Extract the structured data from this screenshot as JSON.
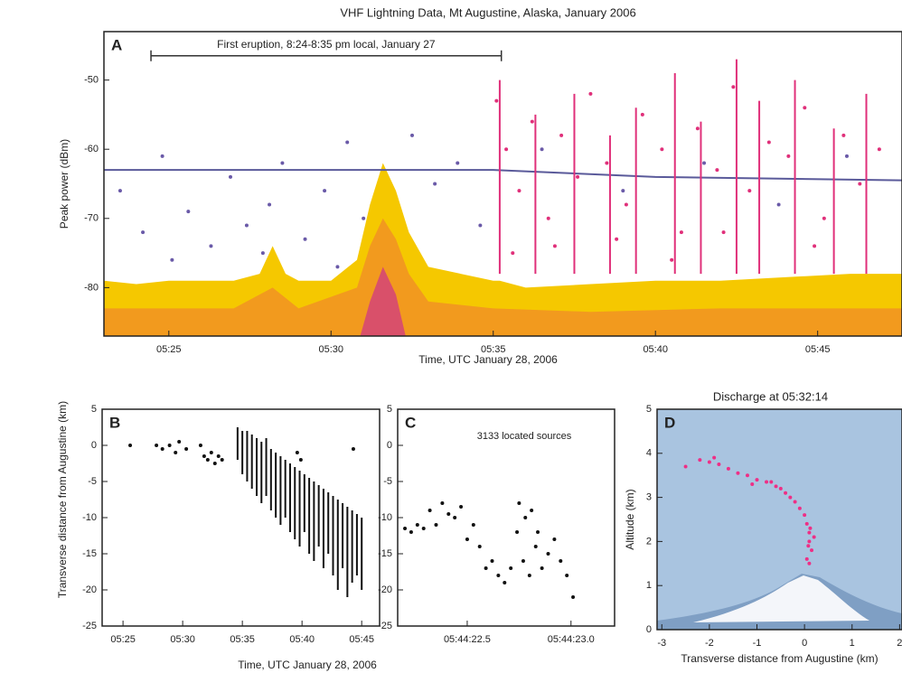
{
  "chart_data": [
    {
      "type": "scatter",
      "panel_label": "A",
      "title": "VHF Lightning Data, Mt Augustine, Alaska, January 2006",
      "xlabel": "Time, UTC January 28, 2006",
      "ylabel": "Peak power (dBm)",
      "annotation": "First eruption, 8:24-8:35 pm local, January 27",
      "annotation_x": [
        24.45,
        35.25
      ],
      "annotation_y": -46.5,
      "xlim": [
        23,
        47.6
      ],
      "ylim": [
        -87,
        -43
      ],
      "xticks": [
        {
          "value": 25,
          "label": "05:25"
        },
        {
          "value": 30,
          "label": "05:30"
        },
        {
          "value": 35,
          "label": "05:35"
        },
        {
          "value": 40,
          "label": "05:40"
        },
        {
          "value": 45,
          "label": "05:45"
        }
      ],
      "yticks": [
        -80,
        -70,
        -60,
        -50
      ],
      "series": [
        {
          "type": "area",
          "color": "#f5c800",
          "x": [
            23,
            24,
            25,
            26,
            27,
            27.8,
            28.2,
            28.6,
            29,
            30,
            30.8,
            31.2,
            31.6,
            32,
            32.4,
            33,
            34,
            35,
            35.2,
            36,
            38,
            40,
            42,
            44,
            46,
            47.6
          ],
          "values": [
            -79,
            -79.5,
            -79,
            -79,
            -79,
            -78,
            -74,
            -78,
            -79,
            -79,
            -76,
            -68,
            -62,
            -66,
            -72,
            -77,
            -78,
            -79,
            -79,
            -80,
            -79.5,
            -79,
            -79,
            -78.5,
            -78,
            -78
          ]
        },
        {
          "type": "area",
          "color": "#f29a1e",
          "x": [
            23,
            25,
            27,
            28.2,
            29,
            30.8,
            31.2,
            31.6,
            32,
            32.4,
            33,
            35,
            38,
            42,
            47.6
          ],
          "values": [
            -83,
            -83,
            -83,
            -80,
            -83,
            -80,
            -74,
            -70,
            -73,
            -78,
            -82,
            -83,
            -83.5,
            -83,
            -83
          ]
        },
        {
          "type": "area",
          "color": "#d9506a",
          "x": [
            23,
            30.9,
            31.2,
            31.6,
            32,
            32.3,
            47.6
          ],
          "values": [
            -87,
            -87,
            -82,
            -77,
            -81,
            -87,
            -87
          ]
        },
        {
          "type": "line",
          "color": "#5a5a9a",
          "x": [
            23,
            35,
            40,
            47.6
          ],
          "values": [
            -63,
            -63,
            -64,
            -64.5
          ]
        },
        {
          "type": "scatter",
          "color": "#6a5aa8",
          "x": [
            23.5,
            24.2,
            24.8,
            25.6,
            26.3,
            26.9,
            27.4,
            28.1,
            28.5,
            29.2,
            29.8,
            30.5,
            31.0,
            32.5,
            33.2,
            33.9,
            34.6,
            36.5,
            39.0,
            41.5,
            43.8,
            45.9,
            25.1,
            27.9,
            30.2
          ],
          "values": [
            -66,
            -72,
            -61,
            -69,
            -74,
            -64,
            -71,
            -68,
            -62,
            -73,
            -66,
            -59,
            -70,
            -58,
            -65,
            -62,
            -71,
            -60,
            -66,
            -62,
            -68,
            -61,
            -76,
            -75,
            -77
          ]
        },
        {
          "type": "range",
          "color": "#e0307a",
          "x": [
            35.2,
            36.3,
            37.5,
            38.6,
            39.4,
            40.6,
            41.4,
            42.5,
            43.2,
            44.3,
            45.5,
            46.5
          ],
          "low": [
            -78,
            -78,
            -78,
            -78,
            -78,
            -78,
            -78,
            -78,
            -78,
            -78,
            -78,
            -78
          ],
          "high": [
            -50,
            -55,
            -52,
            -58,
            -54,
            -49,
            -56,
            -47,
            -53,
            -50,
            -57,
            -52
          ]
        },
        {
          "type": "scatter",
          "color": "#e0307a",
          "x": [
            35.1,
            35.4,
            35.8,
            36.2,
            36.7,
            37.1,
            37.6,
            38.0,
            38.5,
            39.1,
            39.6,
            40.2,
            40.8,
            41.3,
            41.9,
            42.4,
            42.9,
            43.5,
            44.1,
            44.6,
            45.2,
            45.8,
            46.3,
            46.9,
            35.6,
            36.9,
            38.8,
            40.5,
            42.1,
            44.9
          ],
          "values": [
            -53,
            -60,
            -66,
            -56,
            -70,
            -58,
            -64,
            -52,
            -62,
            -68,
            -55,
            -60,
            -72,
            -57,
            -63,
            -51,
            -66,
            -59,
            -61,
            -54,
            -70,
            -58,
            -65,
            -60,
            -75,
            -74,
            -73,
            -76,
            -72,
            -74
          ]
        }
      ]
    },
    {
      "type": "scatter",
      "panel_label": "B",
      "xlabel": "Time, UTC January 28, 2006",
      "ylabel": "Transverse distance from Augustine (km)",
      "xlim": [
        23.25,
        46.5
      ],
      "ylim": [
        -25,
        5
      ],
      "xticks": [
        {
          "value": 25,
          "label": "05:25"
        },
        {
          "value": 30,
          "label": "05:30"
        },
        {
          "value": 35,
          "label": "05:35"
        },
        {
          "value": 40,
          "label": "05:40"
        },
        {
          "value": 45,
          "label": "05:45"
        }
      ],
      "yticks": [
        -25,
        -20,
        -15,
        -10,
        -5,
        0,
        5
      ],
      "series": [
        {
          "type": "range",
          "color": "#111111",
          "x": [
            34.6,
            35.0,
            35.4,
            35.8,
            36.2,
            36.6,
            37.0,
            37.4,
            37.8,
            38.2,
            38.6,
            39.0,
            39.4,
            39.8,
            40.2,
            40.6,
            41.0,
            41.4,
            41.8,
            42.2,
            42.6,
            43.0,
            43.4,
            43.8,
            44.2,
            44.6,
            45.0
          ],
          "low": [
            -2,
            -4,
            -5,
            -6,
            -7,
            -8,
            -7,
            -9,
            -10,
            -11,
            -10,
            -12,
            -13,
            -14,
            -12,
            -15,
            -16,
            -14,
            -17,
            -15,
            -18,
            -20,
            -17,
            -21,
            -19,
            -18,
            -20
          ],
          "high": [
            2.5,
            2,
            2,
            1.5,
            1,
            0.5,
            1,
            -0.5,
            -1,
            -1.5,
            -2,
            -2.5,
            -3,
            -3.5,
            -4,
            -4.5,
            -5,
            -5.5,
            -6,
            -6.5,
            -7,
            -7.5,
            -8,
            -8.5,
            -9,
            -9.5,
            -10
          ]
        },
        {
          "type": "scatter",
          "color": "#111111",
          "x": [
            25.6,
            27.8,
            28.3,
            28.9,
            29.4,
            29.7,
            30.3,
            31.5,
            31.8,
            32.1,
            32.4,
            32.7,
            33.0,
            33.3,
            39.6,
            39.9,
            44.3
          ],
          "values": [
            0,
            0,
            -0.5,
            0,
            -1,
            0.5,
            -0.5,
            0,
            -1.5,
            -2,
            -1,
            -2.5,
            -1.5,
            -2,
            -1,
            -2,
            -0.5
          ]
        }
      ]
    },
    {
      "type": "scatter",
      "panel_label": "C",
      "annotation": "3133 located sources",
      "xlim": [
        22.165,
        23.21
      ],
      "ylim": [
        -25,
        5
      ],
      "xticks": [
        {
          "value": 22.5,
          "label": "05:44:22.5"
        },
        {
          "value": 23.0,
          "label": "05:44:23.0"
        }
      ],
      "yticks": [
        -25,
        -20,
        -15,
        -10,
        -5,
        0,
        5
      ],
      "series": [
        {
          "type": "scatter",
          "color": "#111111",
          "x": [
            22.2,
            22.23,
            22.26,
            22.29,
            22.32,
            22.35,
            22.38,
            22.41,
            22.44,
            22.47,
            22.5,
            22.53,
            22.56,
            22.59,
            22.62,
            22.65,
            22.68,
            22.71,
            22.74,
            22.77,
            22.8,
            22.83,
            22.86,
            22.89,
            22.92,
            22.95,
            22.98,
            23.01,
            22.75,
            22.78,
            22.81,
            22.84
          ],
          "values": [
            -11.5,
            -12,
            -11,
            -11.5,
            -9,
            -11,
            -8,
            -9.5,
            -10,
            -8.5,
            -13,
            -11,
            -14,
            -17,
            -16,
            -18,
            -19,
            -17,
            -12,
            -16,
            -18,
            -14,
            -17,
            -15,
            -13,
            -16,
            -18,
            -21,
            -8,
            -10,
            -9,
            -12
          ]
        }
      ]
    },
    {
      "type": "scatter",
      "panel_label": "D",
      "title": "Discharge at 05:32:14",
      "xlabel": "Transverse distance from Augustine (km)",
      "ylabel": "Altitude (km)",
      "background": "#a9c4e0",
      "xlim": [
        -3.1,
        2.05
      ],
      "ylim": [
        0,
        5
      ],
      "xticks": [
        -3,
        -2,
        -1,
        0,
        1,
        2
      ],
      "yticks": [
        0,
        1,
        2,
        3,
        4,
        5
      ],
      "series": [
        {
          "type": "scatter",
          "color": "#ee2f86",
          "x": [
            -2.2,
            -2.0,
            -1.8,
            -1.6,
            -1.4,
            -1.2,
            -1.0,
            -0.8,
            -0.6,
            -0.5,
            -0.4,
            -0.3,
            -0.2,
            -0.1,
            0,
            0.05,
            0.1,
            0.1,
            0.15,
            0.05,
            0.2,
            -2.5,
            -1.9,
            -1.1,
            -0.7,
            0.1,
            0.08,
            0.12
          ],
          "values": [
            3.85,
            3.8,
            3.75,
            3.65,
            3.55,
            3.5,
            3.4,
            3.35,
            3.25,
            3.2,
            3.1,
            3,
            2.9,
            2.75,
            2.6,
            2.4,
            2.2,
            2.0,
            1.8,
            1.6,
            2.1,
            3.7,
            3.9,
            3.3,
            3.35,
            1.5,
            1.9,
            2.3
          ]
        }
      ]
    }
  ]
}
